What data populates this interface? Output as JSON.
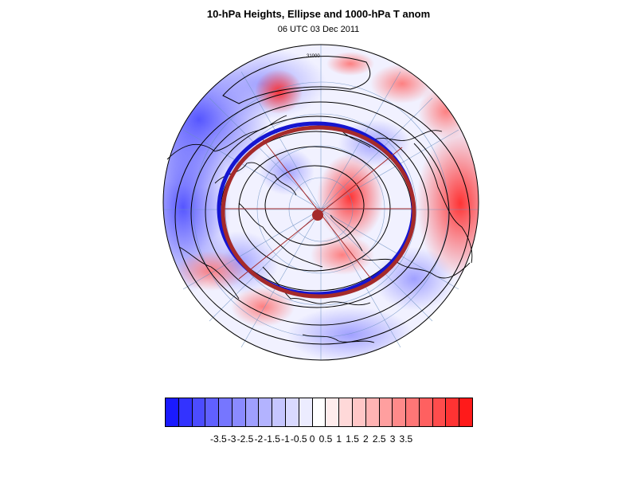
{
  "title": "10-hPa Heights, Ellipse and 1000-hPa T anom",
  "subtitle": "06 UTC 03 Dec 2011",
  "contour_label": "31000",
  "colors": {
    "cold_deep": "#1a1aff",
    "warm_deep": "#ff1a1a",
    "ellipse_red": "#a52a2a",
    "ellipse_blue": "#1515d0",
    "grid": "#6a8fc0"
  },
  "colorbar": {
    "fills": [
      "#1a1aff",
      "#3333ff",
      "#4c4cff",
      "#6060ff",
      "#7676ff",
      "#8a8aff",
      "#9f9fff",
      "#b3b3ff",
      "#c6c6ff",
      "#d9d9ff",
      "#ececff",
      "#ffffff",
      "#ffecec",
      "#ffd9d9",
      "#ffc6c6",
      "#ffb3b3",
      "#ff9f9f",
      "#ff8a8a",
      "#ff7676",
      "#ff6060",
      "#ff4c4c",
      "#ff3333",
      "#ff1a1a"
    ],
    "labels": [
      "-3.5",
      "-3",
      "-2.5",
      "-2",
      "-1.5",
      "-1",
      "-0.5",
      "0",
      "0.5",
      "1",
      "1.5",
      "2",
      "2.5",
      "3",
      "3.5"
    ]
  }
}
